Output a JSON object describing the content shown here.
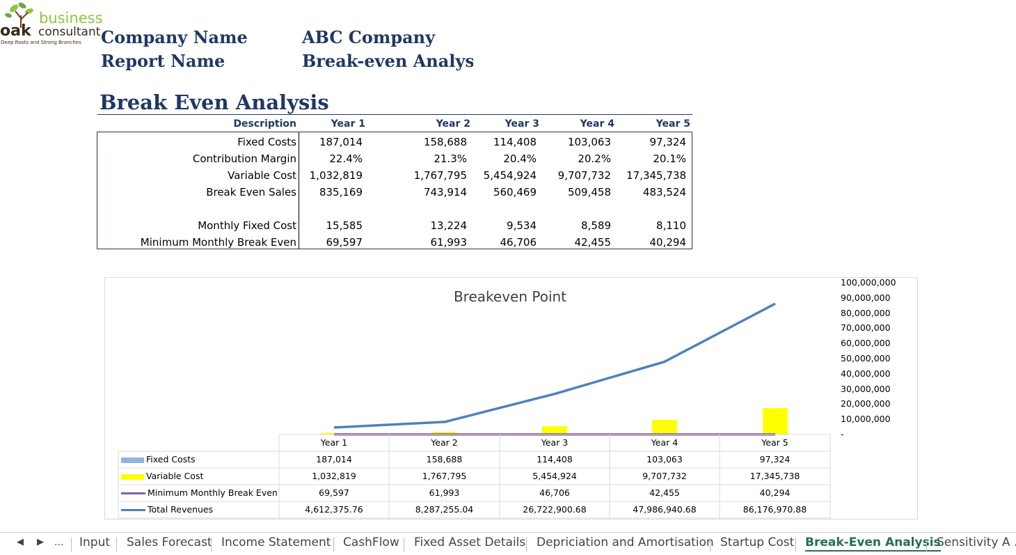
{
  "logo": {
    "line1": "business",
    "line2": "consultant",
    "mark": "oak",
    "tagline": "Deep Roots and Strong Branches"
  },
  "header": {
    "company_label": "Company Name",
    "company_value": "ABC Company",
    "report_label": "Report Name",
    "report_value": "Break-even Analysis"
  },
  "section_title": "Break Even Analysis",
  "table": {
    "columns": [
      "Description",
      "Year 1",
      "Year 2",
      "Year 3",
      "Year 4",
      "Year 5"
    ],
    "rows": [
      {
        "label": "Fixed Costs",
        "values": [
          "187,014",
          "158,688",
          "114,408",
          "103,063",
          "97,324"
        ]
      },
      {
        "label": "Contribution Margin",
        "values": [
          "22.4%",
          "21.3%",
          "20.4%",
          "20.2%",
          "20.1%"
        ]
      },
      {
        "label": "Variable Cost",
        "values": [
          "1,032,819",
          "1,767,795",
          "5,454,924",
          "9,707,732",
          "17,345,738"
        ]
      },
      {
        "label": "Break Even Sales",
        "values": [
          "835,169",
          "743,914",
          "560,469",
          "509,458",
          "483,524"
        ]
      },
      {
        "label": "Monthly Fixed Cost",
        "values": [
          "15,585",
          "13,224",
          "9,534",
          "8,589",
          "8,110"
        ]
      },
      {
        "label": "Minimum Monthly Break Even",
        "values": [
          "69,597",
          "61,993",
          "46,706",
          "42,455",
          "40,294"
        ]
      }
    ]
  },
  "chart_data": {
    "type": "bar",
    "title": "Breakeven Point",
    "categories": [
      "Year 1",
      "Year 2",
      "Year 3",
      "Year 4",
      "Year 5"
    ],
    "ylim": [
      0,
      100000000
    ],
    "yticks": [
      "100,000,000",
      "90,000,000",
      "80,000,000",
      "70,000,000",
      "60,000,000",
      "50,000,000",
      "40,000,000",
      "30,000,000",
      "20,000,000",
      "10,000,000",
      "-"
    ],
    "series": [
      {
        "name": "Fixed Costs",
        "kind": "bar",
        "color": "#8eb4e3",
        "values": [
          187014,
          158688,
          114408,
          103063,
          97324
        ],
        "labels": [
          "187,014",
          "158,688",
          "114,408",
          "103,063",
          "97,324"
        ]
      },
      {
        "name": "Variable Cost",
        "kind": "bar",
        "color": "#ffff00",
        "values": [
          1032819,
          1767795,
          5454924,
          9707732,
          17345738
        ],
        "labels": [
          "1,032,819",
          "1,767,795",
          "5,454,924",
          "9,707,732",
          "17,345,738"
        ]
      },
      {
        "name": "Minimum Monthly Break Even",
        "kind": "line",
        "color": "#8064a2",
        "values": [
          69597,
          61993,
          46706,
          42455,
          40294
        ],
        "labels": [
          "69,597",
          "61,993",
          "46,706",
          "42,455",
          "40,294"
        ]
      },
      {
        "name": "Total Revenues",
        "kind": "line",
        "color": "#4f81bd",
        "values": [
          4612375.76,
          8287255.04,
          26722900.68,
          47986940.68,
          86176970.88
        ],
        "labels": [
          "4,612,375.76",
          "8,287,255.04",
          "26,722,900.68",
          "47,986,940.68",
          "86,176,970.88"
        ]
      }
    ]
  },
  "sheet_tabs": {
    "nav_more": "...",
    "tabs": [
      "Input",
      "Sales Forecast",
      "Income Statement",
      "CashFlow",
      "Fixed Asset Details",
      "Depriciation and Amortisation",
      "Startup Cost",
      "Break-Even Analysis",
      "Sensitivity A ..."
    ],
    "active": "Break-Even Analysis"
  }
}
